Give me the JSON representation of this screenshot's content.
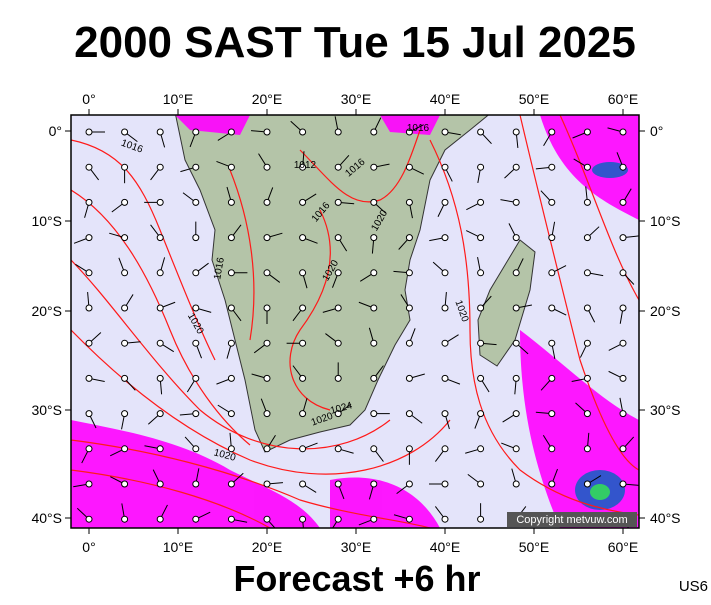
{
  "header": {
    "title": "2000 SAST Tue 15 Jul 2025"
  },
  "map": {
    "lon_labels": [
      "0°",
      "10°E",
      "20°E",
      "30°E",
      "40°E",
      "50°E",
      "60°E"
    ],
    "lat_labels": [
      "0°",
      "10°S",
      "20°S",
      "30°S",
      "40°S"
    ],
    "isobars": [
      "1016",
      "1012",
      "1016",
      "1016",
      "1016",
      "1020",
      "1016",
      "1020",
      "1020",
      "1020",
      "1024",
      "1020",
      "1020"
    ],
    "copyright": "Copyright metvuw.com"
  },
  "footer": {
    "forecast": "Forecast +6 hr",
    "code": "US6"
  }
}
